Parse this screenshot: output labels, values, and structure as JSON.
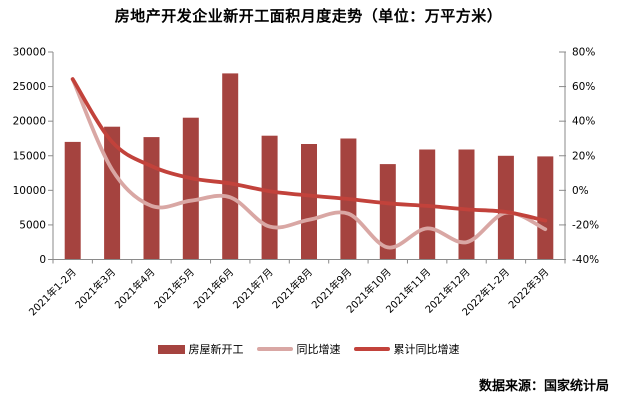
{
  "title": "房地产开发企业新开工面积月度走势（单位：万平方米）",
  "source": "数据来源：国家统计局",
  "chart_data": {
    "type": "bar+line",
    "title": "房地产开发企业新开工面积月度走势",
    "unit_label": "万平方米",
    "grid": false,
    "legend_position": "bottom",
    "axis_color": "#8a8a8a",
    "categories": [
      "2021年1-2月",
      "2021年3月",
      "2021年4月",
      "2021年5月",
      "2021年6月",
      "2021年7月",
      "2021年8月",
      "2021年9月",
      "2021年10月",
      "2021年11月",
      "2021年12月",
      "2022年1-2月",
      "2022年3月"
    ],
    "series": [
      {
        "name": "房屋新开工",
        "type": "bar",
        "axis": "left",
        "color": "#A5433F",
        "values": [
          17000,
          19200,
          17700,
          20500,
          26900,
          17900,
          16700,
          17500,
          13800,
          15900,
          15900,
          15000,
          14900
        ]
      },
      {
        "name": "同比增速",
        "type": "line",
        "axis": "right",
        "color": "#D9A7A4",
        "values": [
          64.3,
          12,
          -9,
          -6,
          -4,
          -21,
          -17,
          -13.5,
          -33,
          -22,
          -30,
          -13,
          -22.5
        ]
      },
      {
        "name": "累计同比增速",
        "type": "line",
        "axis": "right",
        "color": "#C2423B",
        "values": [
          64.3,
          28,
          14,
          7,
          4,
          -0.5,
          -3,
          -5,
          -7.5,
          -9,
          -11,
          -12.5,
          -17.5
        ]
      }
    ],
    "left_axis": {
      "min": 0,
      "max": 30000,
      "step": 5000,
      "ticks": [
        "0",
        "5000",
        "10000",
        "15000",
        "20000",
        "25000",
        "30000"
      ]
    },
    "right_axis": {
      "min": -40,
      "max": 80,
      "step": 20,
      "ticks": [
        "-40%",
        "-20%",
        "0%",
        "20%",
        "40%",
        "60%",
        "80%"
      ]
    }
  }
}
